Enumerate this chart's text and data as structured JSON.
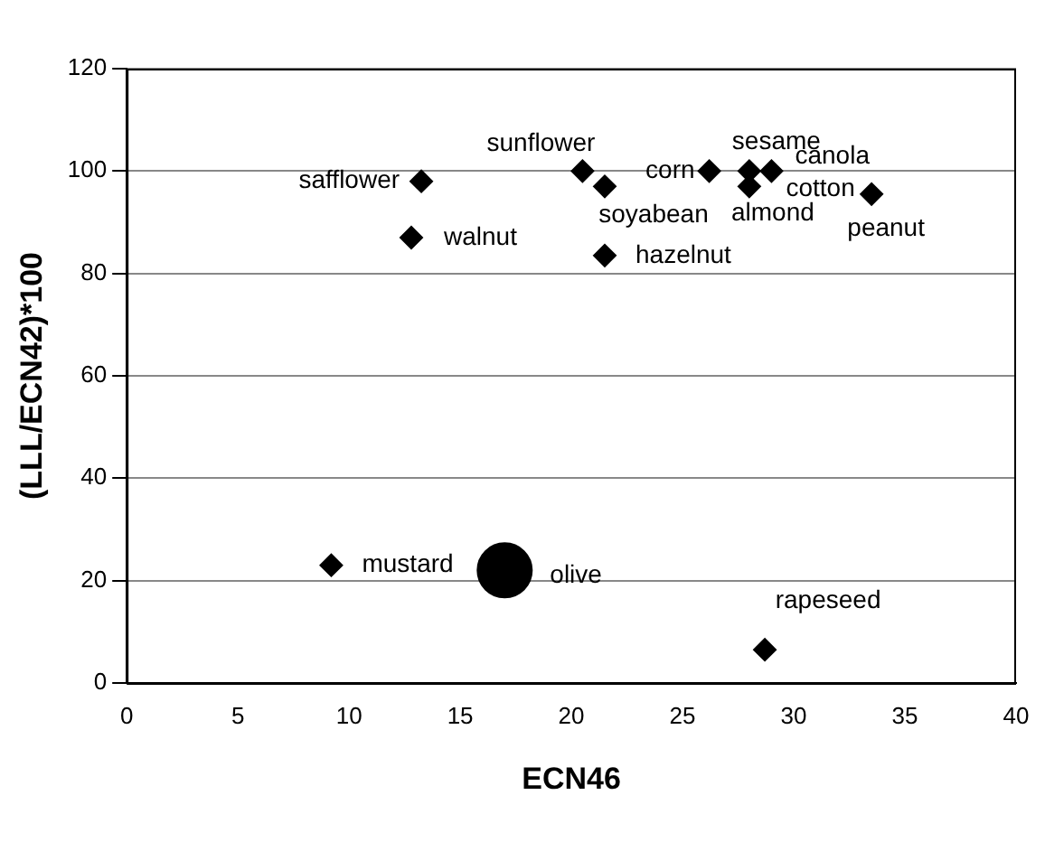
{
  "chart_data": {
    "type": "scatter",
    "xlabel": "ECN46",
    "ylabel": "(LLL/ECN42)*100",
    "series": [
      {
        "color": "#000000",
        "marker": "diamond",
        "x": [
          13.25,
          20.5,
          21.5,
          26.2,
          28.0,
          29.0,
          28.0,
          33.5,
          12.8,
          21.5,
          9.2,
          28.7
        ],
        "values": [
          98,
          100,
          97,
          100,
          100,
          100,
          97,
          95.5,
          87,
          83.5,
          23,
          6.5
        ]
      },
      {
        "color": "#000000",
        "marker": "circle",
        "x": [
          17.0
        ],
        "values": [
          22
        ]
      }
    ],
    "annotations": [
      {
        "text": "safflower",
        "x": 13.25,
        "y": 98
      },
      {
        "text": "sunflower",
        "x": 20.5,
        "y": 100
      },
      {
        "text": "soyabean",
        "x": 21.5,
        "y": 97
      },
      {
        "text": "corn",
        "x": 26.2,
        "y": 100
      },
      {
        "text": "sesame",
        "x": 28.0,
        "y": 100
      },
      {
        "text": "canola",
        "x": 29.0,
        "y": 100
      },
      {
        "text": "cotton",
        "x": 29.0,
        "y": 100
      },
      {
        "text": "almond",
        "x": 28.0,
        "y": 97
      },
      {
        "text": "peanut",
        "x": 33.5,
        "y": 95.5
      },
      {
        "text": "walnut",
        "x": 12.8,
        "y": 87
      },
      {
        "text": "hazelnut",
        "x": 21.5,
        "y": 83.5
      },
      {
        "text": "mustard",
        "x": 9.2,
        "y": 23
      },
      {
        "text": "olive",
        "x": 17.0,
        "y": 22
      },
      {
        "text": "rapeseed",
        "x": 28.7,
        "y": 6.5
      }
    ],
    "xlim": [
      0,
      40
    ],
    "xticks": [
      0,
      5,
      10,
      15,
      20,
      25,
      30,
      35,
      40
    ],
    "ylim": [
      0,
      120
    ],
    "yticks": [
      0,
      20,
      40,
      60,
      80,
      100,
      120
    ],
    "grid": "y",
    "legend": false
  }
}
